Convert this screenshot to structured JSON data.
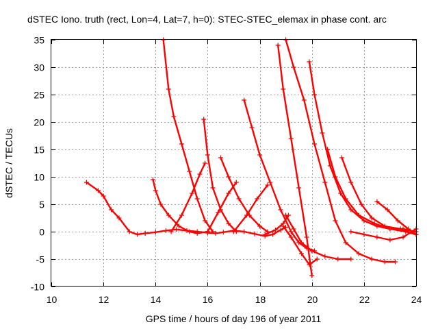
{
  "chart_data": {
    "type": "scatter",
    "title": "dSTEC Iono. truth (rect, Lon=4, Lat=7, h=0): STEC-STEC_elemax in phase cont. arc",
    "xlabel": "GPS time / hours of day 196 of year 2011",
    "ylabel": "dSTEC  / TECUs",
    "xlim": [
      10,
      24
    ],
    "ylim": [
      -10,
      35
    ],
    "xticks": [
      "10",
      "12",
      "14",
      "16",
      "18",
      "20",
      "22",
      "24"
    ],
    "yticks": [
      "-10",
      "-5",
      "0",
      "5",
      "10",
      "15",
      "20",
      "25",
      "30",
      "35"
    ],
    "grid": true,
    "legend": "none",
    "marker": "plus",
    "color": "#ff0000",
    "series": [
      {
        "x": [
          11.35,
          11.8,
          12.0,
          12.3,
          12.6,
          13.0,
          13.3,
          13.6
        ],
        "y": [
          9,
          7.5,
          6.5,
          4,
          2.5,
          0,
          -0.5,
          -0.3
        ]
      },
      {
        "x": [
          13.6,
          14.0,
          14.4,
          14.8,
          15.2,
          15.6,
          16.0,
          16.3,
          16.6,
          17.0,
          17.4,
          17.8,
          18.2,
          18.5,
          18.8,
          19.0
        ],
        "y": [
          -0.3,
          -0.1,
          0.2,
          0.4,
          0.2,
          0.0,
          -0.2,
          -0.3,
          -0.1,
          0.2,
          0.0,
          -0.4,
          -0.8,
          -0.5,
          0.3,
          0.8
        ]
      },
      {
        "x": [
          13.9,
          14.0,
          14.2,
          14.5,
          14.9,
          15.3,
          15.6,
          16.0
        ],
        "y": [
          9.5,
          7.5,
          5,
          3,
          1,
          0,
          -0.3,
          0
        ]
      },
      {
        "x": [
          14.3,
          14.5,
          14.7,
          15.0,
          15.3,
          15.6,
          15.9,
          16.2
        ],
        "y": [
          35,
          26,
          21,
          16,
          11,
          6,
          2,
          0
        ]
      },
      {
        "x": [
          14.6,
          15.0,
          15.4,
          15.7,
          15.9
        ],
        "y": [
          0,
          3,
          7,
          10.5,
          12.5
        ]
      },
      {
        "x": [
          15.85,
          16.0,
          16.2,
          16.5,
          16.8,
          17.1
        ],
        "y": [
          20.5,
          14,
          8,
          4,
          1.5,
          0
        ]
      },
      {
        "x": [
          16.0,
          16.4,
          16.8,
          17.1
        ],
        "y": [
          0,
          3.5,
          7,
          9
        ]
      },
      {
        "x": [
          16.5,
          16.8,
          17.2,
          17.6,
          18.0,
          18.3
        ],
        "y": [
          13.5,
          10,
          6,
          3,
          1,
          0
        ]
      },
      {
        "x": [
          17.0,
          17.5,
          17.9,
          18.3
        ],
        "y": [
          0,
          3,
          6,
          8.5
        ]
      },
      {
        "x": [
          17.4,
          17.7,
          18.0,
          18.4,
          18.8,
          19.2,
          19.5,
          19.8,
          20.1
        ],
        "y": [
          24,
          19,
          14,
          9,
          4,
          0,
          -2,
          -3,
          -3.5
        ]
      },
      {
        "x": [
          18.2,
          18.6,
          18.9,
          19.1
        ],
        "y": [
          -0.5,
          0.3,
          1.5,
          3
        ]
      },
      {
        "x": [
          18.7,
          18.9,
          19.2,
          19.5,
          19.8,
          20.0
        ],
        "y": [
          34,
          26,
          17,
          8,
          -1,
          -8
        ]
      },
      {
        "x": [
          18.9,
          19.2,
          19.6,
          19.9,
          20.2
        ],
        "y": [
          1,
          -1,
          -4,
          -6,
          -5
        ]
      },
      {
        "x": [
          19.0,
          19.3,
          19.7,
          20.1,
          20.5,
          20.9,
          21.3,
          21.8,
          22.3,
          22.8,
          23.2
        ],
        "y": [
          35,
          30,
          24,
          16,
          9,
          2,
          -2,
          -4,
          -5,
          -5.5,
          -5.5
        ]
      },
      {
        "x": [
          19.0,
          19.3,
          19.6,
          20.0,
          20.5,
          21.0,
          21.5
        ],
        "y": [
          3,
          0.5,
          -2,
          -3.5,
          -4.5,
          -5,
          -5
        ]
      },
      {
        "x": [
          19.9,
          20.1,
          20.4,
          20.7,
          21.1,
          21.5,
          22.0,
          22.5,
          23.0,
          23.5,
          24.0
        ],
        "y": [
          31,
          25,
          18,
          12,
          7,
          4,
          2,
          1,
          0.5,
          0.5,
          0
        ]
      },
      {
        "x": [
          20.6,
          20.9,
          21.3,
          21.8,
          22.4,
          23.0,
          23.6,
          24.0
        ],
        "y": [
          15,
          10,
          6,
          3,
          1.5,
          0.5,
          0,
          -0.5
        ]
      },
      {
        "x": [
          21.15,
          21.5,
          21.9,
          22.3,
          22.8,
          23.4,
          24.0
        ],
        "y": [
          13.5,
          9,
          5,
          2.5,
          1,
          0.5,
          -0.5
        ]
      },
      {
        "x": [
          21.5,
          22.0,
          22.5,
          23.0,
          23.5,
          24.0
        ],
        "y": [
          0,
          -0.5,
          -1,
          -1.5,
          -1,
          0.5
        ]
      },
      {
        "x": [
          22.5,
          22.9,
          23.3,
          23.7,
          24.0
        ],
        "y": [
          5.5,
          4,
          2,
          0.5,
          -0.5
        ]
      }
    ]
  }
}
